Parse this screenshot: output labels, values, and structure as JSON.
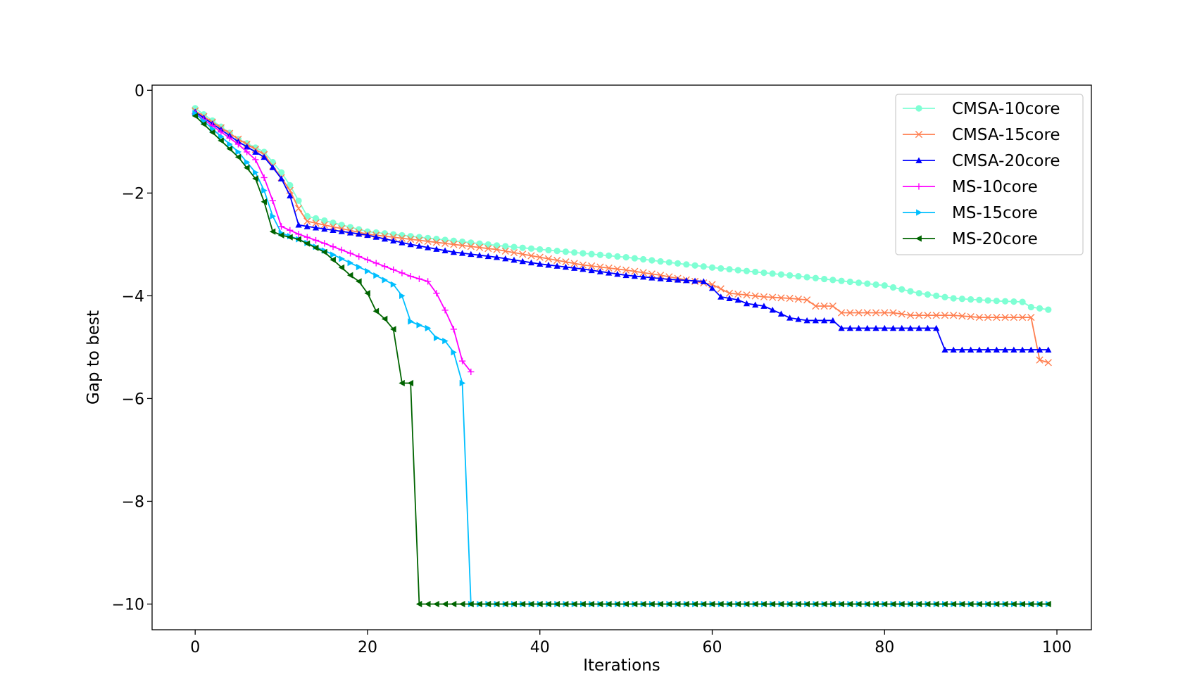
{
  "chart_data": {
    "type": "line",
    "xlabel": "Iterations",
    "ylabel": "Gap to best",
    "xlim": [
      -5,
      104
    ],
    "ylim": [
      -10.5,
      0.1
    ],
    "xticks": [
      0,
      20,
      40,
      60,
      80,
      100
    ],
    "yticks": [
      0,
      -2,
      -4,
      -6,
      -8,
      -10
    ],
    "xtick_labels": [
      "0",
      "20",
      "40",
      "60",
      "80",
      "100"
    ],
    "ytick_labels": [
      "0",
      "−2",
      "−4",
      "−6",
      "−8",
      "−10"
    ],
    "legend_position": "top-right",
    "grid": false,
    "series": [
      {
        "name": "CMSA-10core",
        "color": "#7fffd4",
        "marker": "circle",
        "breakpoints": [
          [
            0,
            -0.35
          ],
          [
            5,
            -0.95
          ],
          [
            8,
            -1.2
          ],
          [
            10,
            -1.6
          ],
          [
            11,
            -1.85
          ],
          [
            12,
            -2.15
          ],
          [
            13,
            -2.45
          ],
          [
            20,
            -2.75
          ],
          [
            35,
            -3.02
          ],
          [
            50,
            -3.25
          ],
          [
            60,
            -3.45
          ],
          [
            70,
            -3.62
          ],
          [
            80,
            -3.8
          ],
          [
            84,
            -3.95
          ],
          [
            88,
            -4.05
          ],
          [
            93,
            -4.1
          ],
          [
            96,
            -4.12
          ],
          [
            97,
            -4.22
          ],
          [
            99,
            -4.27
          ]
        ]
      },
      {
        "name": "CMSA-15core",
        "color": "#ff7f50",
        "marker": "x",
        "breakpoints": [
          [
            0,
            -0.4
          ],
          [
            5,
            -0.95
          ],
          [
            8,
            -1.25
          ],
          [
            10,
            -1.7
          ],
          [
            11,
            -1.95
          ],
          [
            12,
            -2.3
          ],
          [
            13,
            -2.55
          ],
          [
            20,
            -2.8
          ],
          [
            30,
            -3.0
          ],
          [
            35,
            -3.1
          ],
          [
            40,
            -3.25
          ],
          [
            45,
            -3.4
          ],
          [
            50,
            -3.5
          ],
          [
            54,
            -3.6
          ],
          [
            60,
            -3.78
          ],
          [
            62,
            -3.95
          ],
          [
            66,
            -4.02
          ],
          [
            69,
            -4.05
          ],
          [
            71,
            -4.08
          ],
          [
            72,
            -4.2
          ],
          [
            74,
            -4.2
          ],
          [
            75,
            -4.33
          ],
          [
            81,
            -4.33
          ],
          [
            83,
            -4.38
          ],
          [
            88,
            -4.38
          ],
          [
            91,
            -4.42
          ],
          [
            97,
            -4.42
          ],
          [
            98,
            -5.25
          ],
          [
            99,
            -5.3
          ]
        ]
      },
      {
        "name": "CMSA-20core",
        "color": "#0000ff",
        "marker": "triangle-up",
        "breakpoints": [
          [
            0,
            -0.42
          ],
          [
            5,
            -1.0
          ],
          [
            7,
            -1.2
          ],
          [
            8,
            -1.3
          ],
          [
            9,
            -1.5
          ],
          [
            10,
            -1.72
          ],
          [
            11,
            -2.05
          ],
          [
            12,
            -2.62
          ],
          [
            13,
            -2.65
          ],
          [
            20,
            -2.82
          ],
          [
            25,
            -3.0
          ],
          [
            30,
            -3.15
          ],
          [
            35,
            -3.25
          ],
          [
            40,
            -3.38
          ],
          [
            45,
            -3.48
          ],
          [
            50,
            -3.6
          ],
          [
            55,
            -3.68
          ],
          [
            59,
            -3.72
          ],
          [
            60,
            -3.85
          ],
          [
            61,
            -4.02
          ],
          [
            63,
            -4.08
          ],
          [
            64,
            -4.15
          ],
          [
            66,
            -4.2
          ],
          [
            68,
            -4.35
          ],
          [
            69,
            -4.43
          ],
          [
            71,
            -4.48
          ],
          [
            74,
            -4.48
          ],
          [
            75,
            -4.63
          ],
          [
            86,
            -4.63
          ],
          [
            87,
            -5.05
          ],
          [
            99,
            -5.05
          ]
        ]
      },
      {
        "name": "MS-10core",
        "color": "#ff00ff",
        "marker": "plus",
        "breakpoints": [
          [
            0,
            -0.45
          ],
          [
            5,
            -1.05
          ],
          [
            7,
            -1.35
          ],
          [
            8,
            -1.7
          ],
          [
            9,
            -2.15
          ],
          [
            10,
            -2.65
          ],
          [
            12,
            -2.8
          ],
          [
            15,
            -2.98
          ],
          [
            20,
            -3.3
          ],
          [
            25,
            -3.62
          ],
          [
            27,
            -3.72
          ],
          [
            28,
            -3.95
          ],
          [
            29,
            -4.28
          ],
          [
            30,
            -4.65
          ],
          [
            31,
            -5.27
          ],
          [
            32,
            -5.48
          ]
        ]
      },
      {
        "name": "MS-15core",
        "color": "#00bfff",
        "marker": "triangle-right",
        "breakpoints": [
          [
            0,
            -0.45
          ],
          [
            5,
            -1.2
          ],
          [
            7,
            -1.6
          ],
          [
            8,
            -1.95
          ],
          [
            9,
            -2.45
          ],
          [
            10,
            -2.78
          ],
          [
            12,
            -2.9
          ],
          [
            15,
            -3.12
          ],
          [
            20,
            -3.52
          ],
          [
            23,
            -3.78
          ],
          [
            24,
            -4.0
          ],
          [
            25,
            -4.5
          ],
          [
            26,
            -4.57
          ],
          [
            27,
            -4.63
          ],
          [
            28,
            -4.82
          ],
          [
            29,
            -4.88
          ],
          [
            30,
            -5.1
          ],
          [
            31,
            -5.7
          ],
          [
            32,
            -10.0
          ],
          [
            99,
            -10.0
          ]
        ]
      },
      {
        "name": "MS-20core",
        "color": "#006400",
        "marker": "triangle-left",
        "breakpoints": [
          [
            0,
            -0.5
          ],
          [
            5,
            -1.3
          ],
          [
            7,
            -1.72
          ],
          [
            8,
            -2.17
          ],
          [
            9,
            -2.75
          ],
          [
            10,
            -2.82
          ],
          [
            12,
            -2.9
          ],
          [
            15,
            -3.15
          ],
          [
            18,
            -3.6
          ],
          [
            19,
            -3.72
          ],
          [
            20,
            -3.95
          ],
          [
            21,
            -4.3
          ],
          [
            22,
            -4.45
          ],
          [
            23,
            -4.65
          ],
          [
            24,
            -5.7
          ],
          [
            25,
            -5.7
          ],
          [
            26,
            -10.0
          ],
          [
            99,
            -10.0
          ]
        ]
      }
    ]
  }
}
